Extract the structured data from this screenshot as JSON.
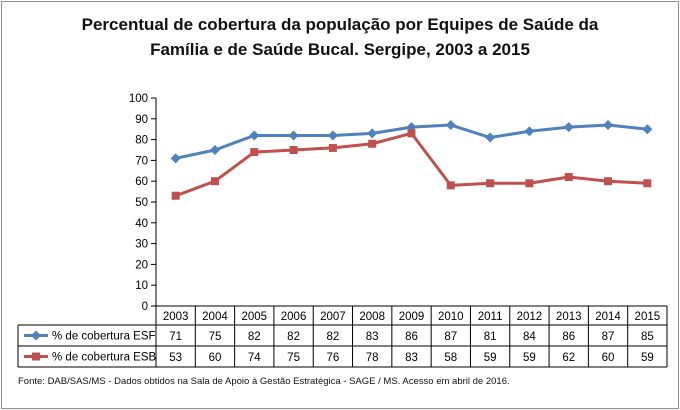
{
  "title": {
    "line1": "Percentual de cobertura da população por Equipes de Saúde da",
    "line2": "Família e de Saúde Bucal. Sergipe, 2003 a 2015"
  },
  "footer": "Fonte:  DAB/SAS/MS - Dados obtidos na Sala de Apoio à Gestão Estratégica - SAGE / MS. Acesso em abril de 2016.",
  "colors": {
    "esf": "#4f81bd",
    "esb": "#c0504d",
    "grid": "#000000"
  },
  "chart_data": {
    "type": "line",
    "title": "Percentual de cobertura da população por Equipes de Saúde da Família e de Saúde Bucal. Sergipe, 2003 a 2015",
    "categories": [
      "2003",
      "2004",
      "2005",
      "2006",
      "2007",
      "2008",
      "2009",
      "2010",
      "2011",
      "2012",
      "2013",
      "2014",
      "2015"
    ],
    "series": [
      {
        "name": "% de cobertura ESF",
        "values": [
          71,
          75,
          82,
          82,
          82,
          83,
          86,
          87,
          81,
          84,
          86,
          87,
          85
        ]
      },
      {
        "name": "% de cobertura ESB",
        "values": [
          53,
          60,
          74,
          75,
          76,
          78,
          83,
          58,
          59,
          59,
          62,
          60,
          59
        ]
      }
    ],
    "table_values": {
      "esf": [
        "71",
        "75",
        "82",
        "82",
        "82",
        "83",
        "86",
        "87",
        "81",
        "84",
        "86",
        "87",
        "85"
      ],
      "esb": [
        "53",
        "60",
        "74",
        "75",
        "76",
        "78",
        "83",
        "58",
        "59",
        "59",
        "62",
        "60",
        "59"
      ]
    },
    "yticks": [
      "0",
      "10",
      "20",
      "30",
      "40",
      "50",
      "60",
      "70",
      "80",
      "90",
      "100"
    ],
    "ylim": [
      0,
      100
    ],
    "xlabel": "",
    "ylabel": "",
    "grid": false,
    "legend": "data-table"
  }
}
